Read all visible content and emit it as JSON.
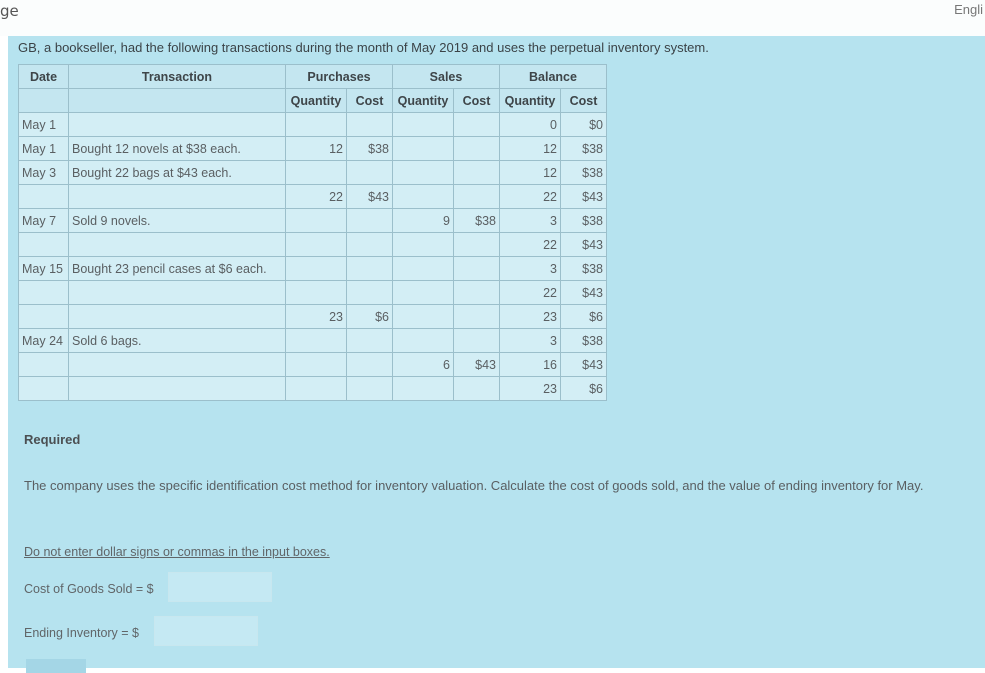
{
  "top": {
    "left_text": "ge",
    "right_text": "Engli"
  },
  "intro": "GB, a bookseller, had the following transactions during the month of May 2019 and uses the perpetual inventory system.",
  "table": {
    "header1": {
      "date": "Date",
      "transaction": "Transaction",
      "purchases": "Purchases",
      "sales": "Sales",
      "balance": "Balance"
    },
    "header2": [
      "Quantity",
      "Cost",
      "Quantity",
      "Cost",
      "Quantity",
      "Cost"
    ],
    "rows": [
      {
        "date": "May 1",
        "transaction": "",
        "pq": "",
        "pc": "",
        "sq": "",
        "sc": "",
        "bq": "0",
        "bc": "$0"
      },
      {
        "date": "May 1",
        "transaction": "Bought 12 novels at $38 each.",
        "pq": "12",
        "pc": "$38",
        "sq": "",
        "sc": "",
        "bq": "12",
        "bc": "$38"
      },
      {
        "date": "May 3",
        "transaction": "Bought 22 bags at $43 each.",
        "pq": "",
        "pc": "",
        "sq": "",
        "sc": "",
        "bq": "12",
        "bc": "$38"
      },
      {
        "date": "",
        "transaction": "",
        "pq": "22",
        "pc": "$43",
        "sq": "",
        "sc": "",
        "bq": "22",
        "bc": "$43"
      },
      {
        "date": "May 7",
        "transaction": "Sold 9 novels.",
        "pq": "",
        "pc": "",
        "sq": "9",
        "sc": "$38",
        "bq": "3",
        "bc": "$38"
      },
      {
        "date": "",
        "transaction": "",
        "pq": "",
        "pc": "",
        "sq": "",
        "sc": "",
        "bq": "22",
        "bc": "$43"
      },
      {
        "date": "May 15",
        "transaction": "Bought 23 pencil cases at $6 each.",
        "pq": "",
        "pc": "",
        "sq": "",
        "sc": "",
        "bq": "3",
        "bc": "$38"
      },
      {
        "date": "",
        "transaction": "",
        "pq": "",
        "pc": "",
        "sq": "",
        "sc": "",
        "bq": "22",
        "bc": "$43"
      },
      {
        "date": "",
        "transaction": "",
        "pq": "23",
        "pc": "$6",
        "sq": "",
        "sc": "",
        "bq": "23",
        "bc": "$6"
      },
      {
        "date": "May 24",
        "transaction": "Sold 6 bags.",
        "pq": "",
        "pc": "",
        "sq": "",
        "sc": "",
        "bq": "3",
        "bc": "$38"
      },
      {
        "date": "",
        "transaction": "",
        "pq": "",
        "pc": "",
        "sq": "6",
        "sc": "$43",
        "bq": "16",
        "bc": "$43"
      },
      {
        "date": "",
        "transaction": "",
        "pq": "",
        "pc": "",
        "sq": "",
        "sc": "",
        "bq": "23",
        "bc": "$6"
      }
    ]
  },
  "required": "Required",
  "instruction": "The company uses the specific identification cost method for inventory valuation. Calculate the cost of goods sold, and the value of ending inventory for May.",
  "note": "Do not enter dollar signs or commas in the input boxes.",
  "cogs": {
    "label": "Cost of Goods Sold = $",
    "value": ""
  },
  "ending": {
    "label": "Ending Inventory = $",
    "value": ""
  },
  "colors": {
    "panel": "#b6e3ef",
    "table_bg": "#d3eef5",
    "grid": "#9bbfcb"
  }
}
